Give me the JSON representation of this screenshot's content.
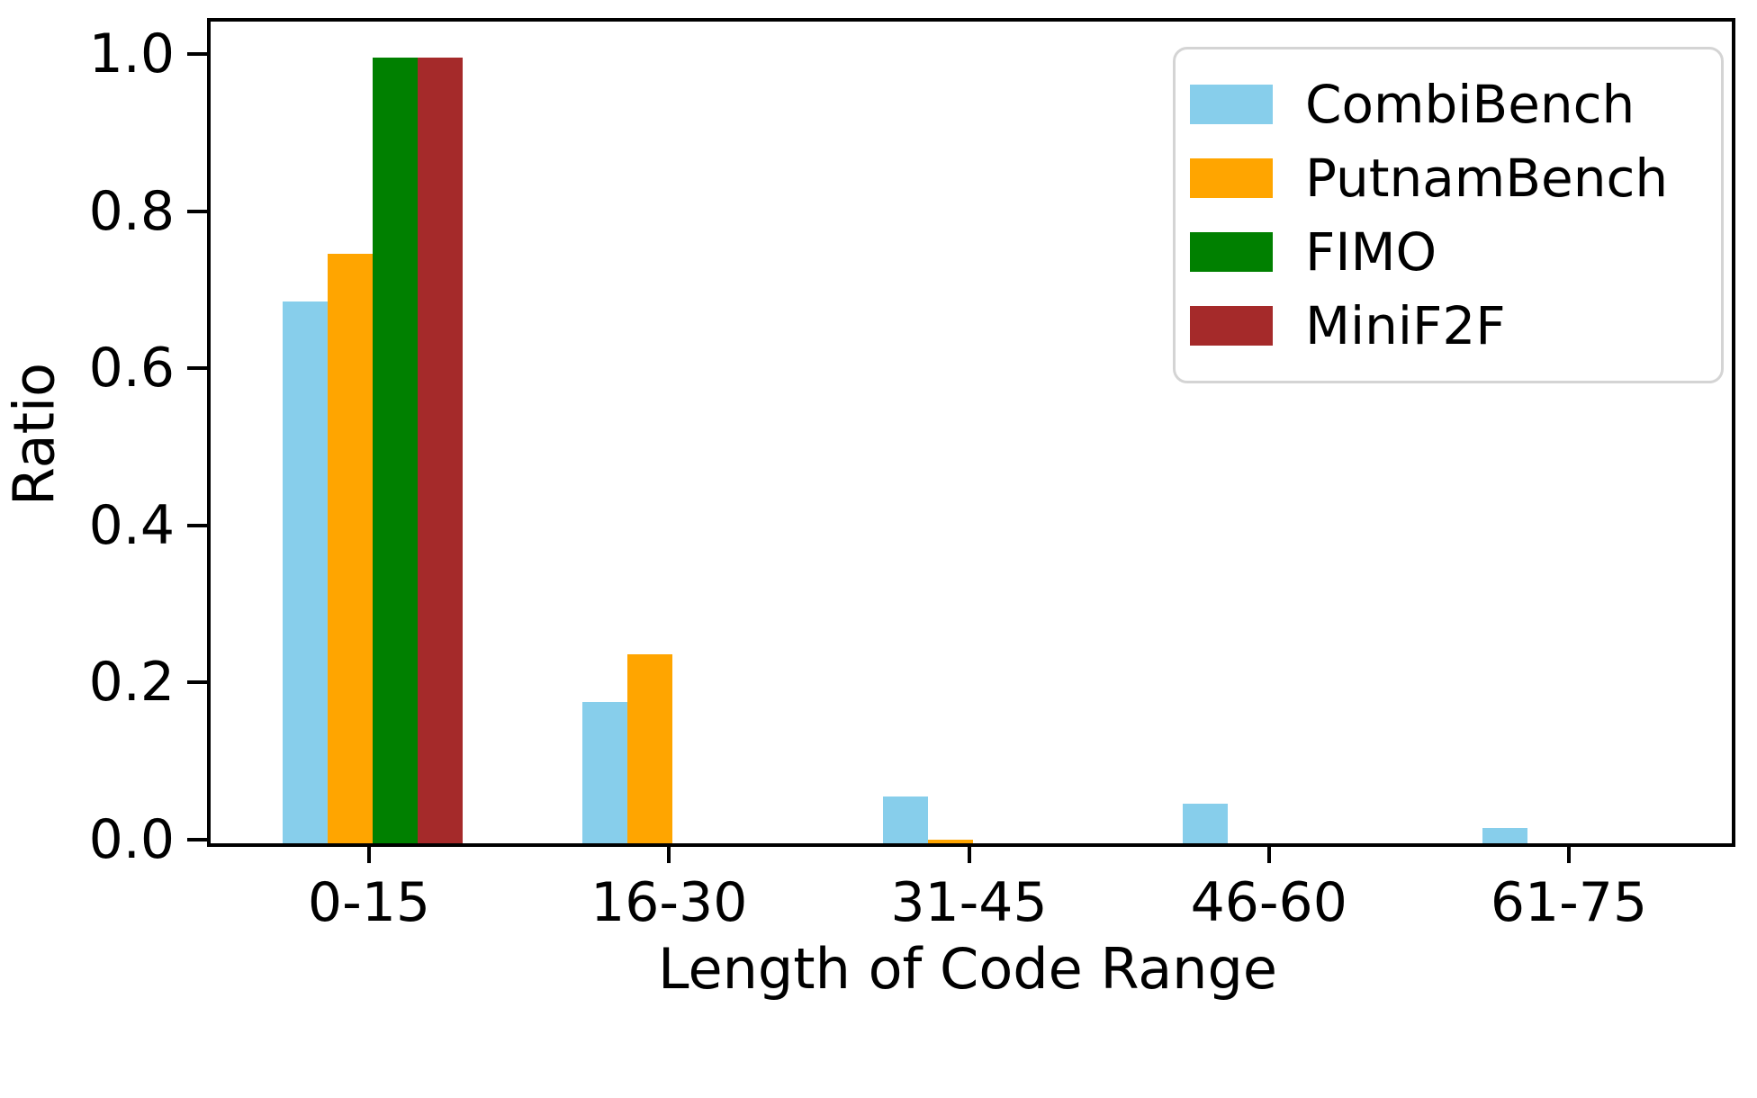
{
  "chart_data": {
    "type": "bar",
    "title": "",
    "xlabel": "Length of Code Range",
    "ylabel": "Ratio",
    "categories": [
      "0-15",
      "16-30",
      "31-45",
      "46-60",
      "61-75"
    ],
    "series": [
      {
        "name": "CombiBench",
        "color": "#87CEEB",
        "values": [
          0.69,
          0.18,
          0.06,
          0.05,
          0.02
        ]
      },
      {
        "name": "PutnamBench",
        "color": "#FFA500",
        "values": [
          0.75,
          0.24,
          0.005,
          0,
          0
        ]
      },
      {
        "name": "FIMO",
        "color": "#008000",
        "values": [
          1.0,
          0,
          0,
          0,
          0
        ]
      },
      {
        "name": "MiniF2F",
        "color": "#A52A2A",
        "values": [
          1.0,
          0,
          0,
          0,
          0
        ]
      }
    ],
    "yticks": [
      "0.0",
      "0.2",
      "0.4",
      "0.6",
      "0.8",
      "1.0"
    ],
    "ylim": [
      0,
      1.045
    ],
    "grid": false,
    "legend_position": "upper right",
    "axis_color": "#000000",
    "background_color": "#ffffff"
  }
}
